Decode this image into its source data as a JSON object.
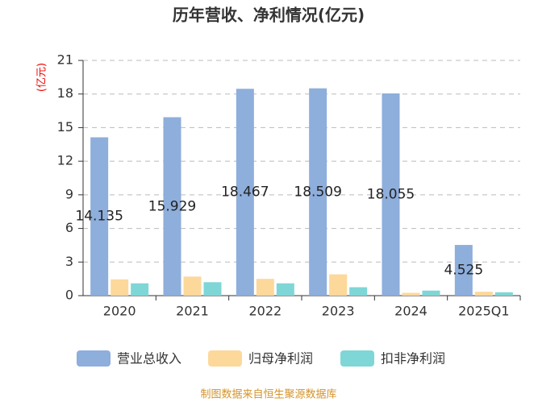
{
  "chart_data": {
    "type": "bar",
    "title": "历年营收、净利情况(亿元)",
    "y_label": "(亿元)",
    "categories": [
      "2020",
      "2021",
      "2022",
      "2023",
      "2024",
      "2025Q1"
    ],
    "series": [
      {
        "name": "营业总收入",
        "color": "#8eaedc",
        "values": [
          14.135,
          15.929,
          18.467,
          18.509,
          18.055,
          4.525
        ],
        "data_labels": true
      },
      {
        "name": "归母净利润",
        "color": "#fdd89b",
        "values": [
          1.45,
          1.7,
          1.5,
          1.9,
          0.25,
          0.35
        ],
        "data_labels": false
      },
      {
        "name": "扣非净利润",
        "color": "#7fd6d6",
        "values": [
          1.1,
          1.2,
          1.1,
          0.75,
          0.45,
          0.3
        ],
        "data_labels": false
      }
    ],
    "ylim": [
      0,
      21
    ],
    "yticks": [
      0,
      3,
      6,
      9,
      12,
      15,
      18,
      21
    ],
    "grid": true,
    "legend": "bottom",
    "source": "制图数据来自恒生聚源数据库"
  }
}
